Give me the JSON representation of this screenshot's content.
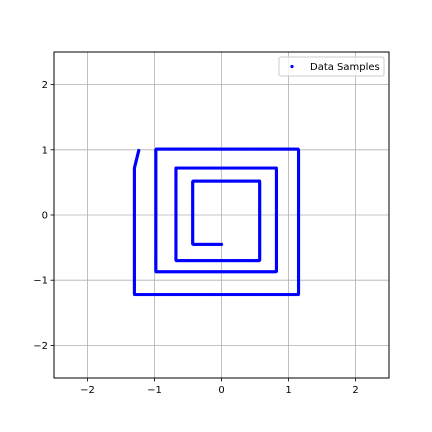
{
  "chart_data": {
    "type": "scatter",
    "xlim": [
      -2.5,
      2.5
    ],
    "ylim": [
      -2.5,
      2.5
    ],
    "x_ticks": [
      -2,
      -1,
      0,
      1,
      2
    ],
    "y_ticks": [
      -2,
      -1,
      0,
      1,
      2
    ],
    "x_tick_labels": [
      "−2",
      "−1",
      "0",
      "1",
      "2"
    ],
    "y_tick_labels": [
      "−2",
      "−1",
      "0",
      "1",
      "2"
    ],
    "grid": true,
    "legend_position": "top-right",
    "series": [
      {
        "name": "Data Samples",
        "color": "#0000ff",
        "marker": "dot",
        "shape": "square spiral, outward from (0, -0.45), counter-clockwise",
        "path_vertices": [
          [
            0.0,
            -0.45
          ],
          [
            -0.43,
            -0.45
          ],
          [
            -0.43,
            0.52
          ],
          [
            0.57,
            0.52
          ],
          [
            0.57,
            -0.7
          ],
          [
            -0.68,
            -0.7
          ],
          [
            -0.68,
            0.72
          ],
          [
            0.82,
            0.72
          ],
          [
            0.82,
            -0.87
          ],
          [
            -0.98,
            -0.87
          ],
          [
            -0.98,
            1.01
          ],
          [
            1.15,
            1.01
          ],
          [
            1.15,
            -1.22
          ],
          [
            -1.3,
            -1.22
          ],
          [
            -1.3,
            0.72
          ],
          [
            -1.23,
            1.01
          ]
        ]
      }
    ]
  }
}
